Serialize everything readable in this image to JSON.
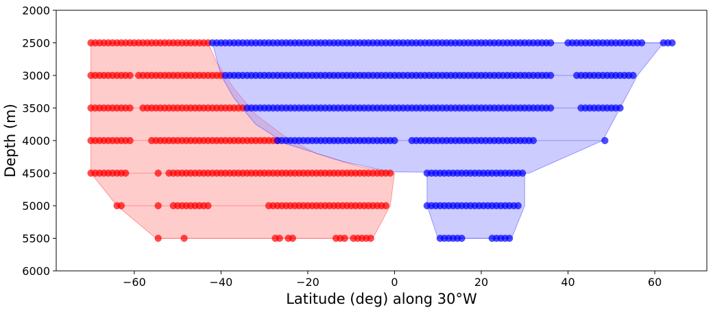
{
  "chart_data": {
    "type": "scatter",
    "title": "",
    "xlabel": "Latitude (deg) along 30°W",
    "ylabel": "Depth (m)",
    "xlim": [
      -78,
      72
    ],
    "ylim": [
      6000,
      2000
    ],
    "xticks": [
      -60,
      -40,
      -20,
      0,
      20,
      40,
      60
    ],
    "xtick_labels": [
      "−60",
      "−40",
      "−20",
      "0",
      "20",
      "40",
      "60"
    ],
    "yticks": [
      2000,
      2500,
      3000,
      3500,
      4000,
      4500,
      5000,
      5500,
      6000
    ],
    "ytick_labels": [
      "2000",
      "2500",
      "3000",
      "3500",
      "4000",
      "4500",
      "5000",
      "5500",
      "6000"
    ],
    "grid": false,
    "colors": {
      "red": "#ff0000",
      "blue": "#0000ff",
      "red_fill": "#ff9999",
      "blue_fill": "#9999ff"
    },
    "regions": [
      {
        "color": "red",
        "polygon": [
          [
            -70,
            2500
          ],
          [
            -43,
            2500
          ],
          [
            -41,
            2800
          ],
          [
            -37,
            3200
          ],
          [
            -32,
            3600
          ],
          [
            -25,
            3950
          ],
          [
            -18,
            4200
          ],
          [
            -8,
            4400
          ],
          [
            0,
            4500
          ],
          [
            -1,
            5000
          ],
          [
            -5,
            5500
          ],
          [
            -55,
            5500
          ],
          [
            -64,
            5000
          ],
          [
            -70,
            4500
          ]
        ]
      },
      {
        "color": "blue",
        "polygon": [
          [
            -42,
            2500
          ],
          [
            62,
            2500
          ],
          [
            56,
            3000
          ],
          [
            52,
            3500
          ],
          [
            48,
            4000
          ],
          [
            31,
            4500
          ],
          [
            -1,
            4480
          ],
          [
            -12,
            4320
          ],
          [
            -25,
            4050
          ],
          [
            -32,
            3750
          ],
          [
            -37,
            3350
          ],
          [
            -40,
            3000
          ],
          [
            -41,
            2750
          ]
        ]
      },
      {
        "color": "blue",
        "polygon": [
          [
            7.5,
            4500
          ],
          [
            30,
            4500
          ],
          [
            30,
            5000
          ],
          [
            27,
            5500
          ],
          [
            10,
            5500
          ],
          [
            7.5,
            5000
          ]
        ]
      }
    ],
    "series": [
      {
        "color": "red",
        "depth": 2500,
        "ranges": [
          [
            -70,
            -43,
            1
          ]
        ]
      },
      {
        "color": "blue",
        "depth": 2500,
        "ranges": [
          [
            -42,
            36,
            1
          ],
          [
            40,
            57,
            1
          ],
          [
            62,
            64,
            1
          ]
        ]
      },
      {
        "color": "red",
        "depth": 3000,
        "ranges": [
          [
            -70,
            -61,
            1
          ],
          [
            -59,
            -40,
            1
          ]
        ]
      },
      {
        "color": "blue",
        "depth": 3000,
        "ranges": [
          [
            -39,
            36,
            1
          ],
          [
            42,
            55,
            1
          ]
        ]
      },
      {
        "color": "red",
        "depth": 3500,
        "ranges": [
          [
            -70,
            -61,
            1
          ],
          [
            -58,
            -35,
            1
          ]
        ]
      },
      {
        "color": "blue",
        "depth": 3500,
        "ranges": [
          [
            -34,
            36,
            1
          ],
          [
            43,
            52,
            1
          ]
        ]
      },
      {
        "color": "red",
        "depth": 4000,
        "ranges": [
          [
            -70,
            -61,
            1
          ],
          [
            -56,
            -53,
            1
          ],
          [
            -52,
            -34,
            1
          ],
          [
            -33,
            -27,
            1
          ]
        ]
      },
      {
        "color": "blue",
        "depth": 4000,
        "ranges": [
          [
            -27,
            0,
            1
          ],
          [
            4,
            32,
            1
          ],
          [
            48.5,
            48.5,
            1
          ]
        ]
      },
      {
        "color": "red",
        "depth": 4500,
        "ranges": [
          [
            -70,
            -62,
            1
          ],
          [
            -54.5,
            -54.5,
            1
          ],
          [
            -52,
            -30,
            1
          ],
          [
            -29,
            -0.5,
            1
          ]
        ]
      },
      {
        "color": "blue",
        "depth": 4500,
        "ranges": [
          [
            7.5,
            30,
            1
          ]
        ]
      },
      {
        "color": "red",
        "depth": 5000,
        "ranges": [
          [
            -64,
            -63,
            1
          ],
          [
            -54.5,
            -54.5,
            1
          ],
          [
            -51,
            -43,
            1
          ],
          [
            -29,
            -1.5,
            1
          ]
        ]
      },
      {
        "color": "blue",
        "depth": 5000,
        "ranges": [
          [
            7.5,
            29,
            1
          ]
        ]
      },
      {
        "color": "red",
        "depth": 5500,
        "ranges": [
          [
            -54.5,
            -54.5,
            1
          ],
          [
            -48.5,
            -48.5,
            1
          ],
          [
            -27.5,
            -26.5,
            1
          ],
          [
            -24.5,
            -23.5,
            1
          ],
          [
            -13.5,
            -11.5,
            1
          ],
          [
            -9.5,
            -5.5,
            1
          ]
        ]
      },
      {
        "color": "blue",
        "depth": 5500,
        "ranges": [
          [
            10.5,
            15.5,
            1
          ],
          [
            22.5,
            26.5,
            1
          ]
        ]
      }
    ]
  }
}
